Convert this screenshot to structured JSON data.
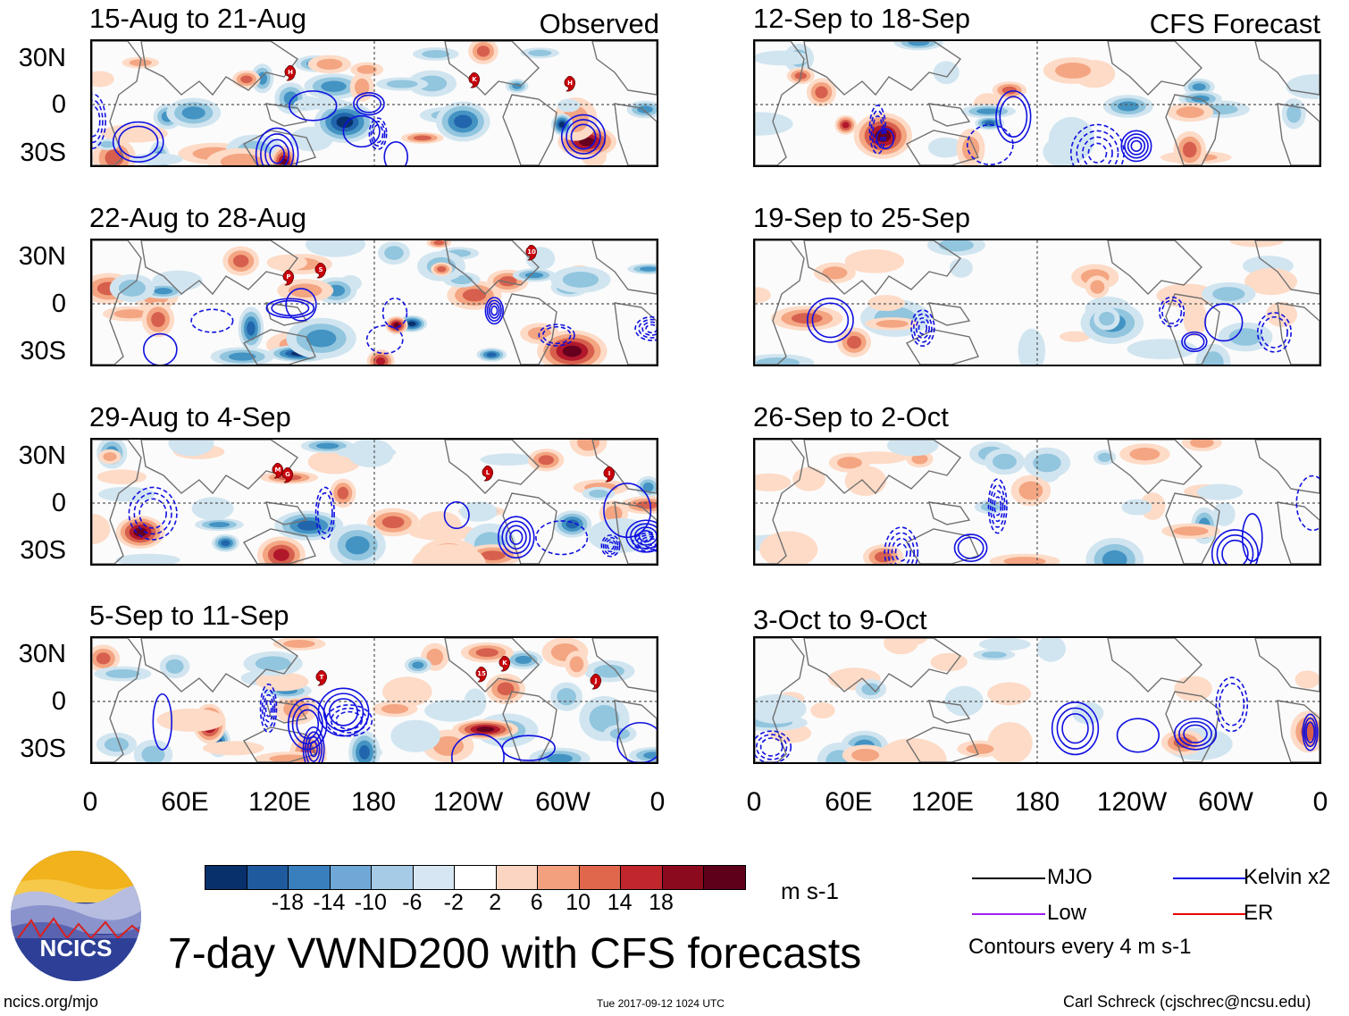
{
  "columns": {
    "left_label": "Observed",
    "right_label": "CFS Forecast"
  },
  "panels": [
    {
      "id": "obs1",
      "title": "15-Aug to 21-Aug",
      "storms": [
        "H",
        "K",
        "H"
      ]
    },
    {
      "id": "obs2",
      "title": "22-Aug to 28-Aug",
      "storms": [
        "P",
        "S",
        "10"
      ]
    },
    {
      "id": "obs3",
      "title": "29-Aug to 4-Sep",
      "storms": [
        "M",
        "G",
        "L",
        "I"
      ]
    },
    {
      "id": "obs4",
      "title": "5-Sep to 11-Sep",
      "storms": [
        "T",
        "15",
        "K",
        "J"
      ]
    },
    {
      "id": "fc1",
      "title": "12-Sep to 18-Sep",
      "storms": []
    },
    {
      "id": "fc2",
      "title": "19-Sep to 25-Sep",
      "storms": []
    },
    {
      "id": "fc3",
      "title": "26-Sep to 2-Oct",
      "storms": []
    },
    {
      "id": "fc4",
      "title": "3-Oct to 9-Oct",
      "storms": []
    }
  ],
  "lat_labels": [
    "30N",
    "0",
    "30S"
  ],
  "lon_labels": [
    "0",
    "60E",
    "120E",
    "180",
    "120W",
    "60W",
    "0"
  ],
  "colorbar": {
    "ticks": [
      "-18",
      "-14",
      "-10",
      "-6",
      "-2",
      "2",
      "6",
      "10",
      "14",
      "18"
    ],
    "units": "m s-1",
    "colors": [
      "#08306b",
      "#1f5a9e",
      "#3a7fbd",
      "#6fa8d6",
      "#a6cbe6",
      "#d6e7f3",
      "#ffffff",
      "#fbd4c2",
      "#f3a07f",
      "#e0674c",
      "#c0262c",
      "#8b0a1d",
      "#5e001a"
    ]
  },
  "legend": {
    "mjo": "MJO",
    "kelvin": "Kelvin x2",
    "low": "Low",
    "er": "ER",
    "contours_note": "Contours every 4 m s-1",
    "colors": {
      "mjo": "#000000",
      "kelvin": "#0000e6",
      "low": "#a020f0",
      "er": "#e60000"
    }
  },
  "main_title": "7-day VWND200 with CFS forecasts",
  "logo_text": "NCICS",
  "footer": {
    "url": "ncics.org/mjo",
    "timestamp": "Tue 2017-09-12 1024 UTC",
    "author": "Carl Schreck (cjschrec@ncsu.edu)"
  }
}
